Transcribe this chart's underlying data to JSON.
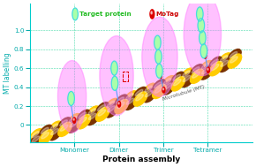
{
  "xlabel": "Protein assembly",
  "ylabel": "MT labelling",
  "xlim": [
    -0.5,
    4.5
  ],
  "ylim": [
    -0.18,
    1.28
  ],
  "yticks": [
    0.0,
    0.2,
    0.4,
    0.6,
    0.8,
    1.0
  ],
  "xtick_labels": [
    "Monomer",
    "Dimer",
    "Trimer",
    "Tetramer"
  ],
  "xtick_positions": [
    0.5,
    1.5,
    2.5,
    3.5
  ],
  "axis_color": "#00cccc",
  "grid_color": "#00cc88",
  "bg_color": "#ffffff",
  "protein_fill": "#aaffaa",
  "protein_edge": "#44dddd",
  "motag_color": "#dd0000",
  "pink_color": "#ff77ff",
  "mt_yellow": "#ffcc00",
  "mt_brown": "#7a3300",
  "chain_color": "#5599ff",
  "xlabel_color": "#000000",
  "ylabel_color": "#00aaaa",
  "tick_color": "#00aaaa",
  "mt_label_color": "#555555",
  "legend_protein_label_color": "#22bb22",
  "legend_motag_label_color": "#cc0000",
  "legend_protein_label": "Target protein",
  "legend_motag_label": "MoTag",
  "mt_label": "Microtubule (MT)"
}
